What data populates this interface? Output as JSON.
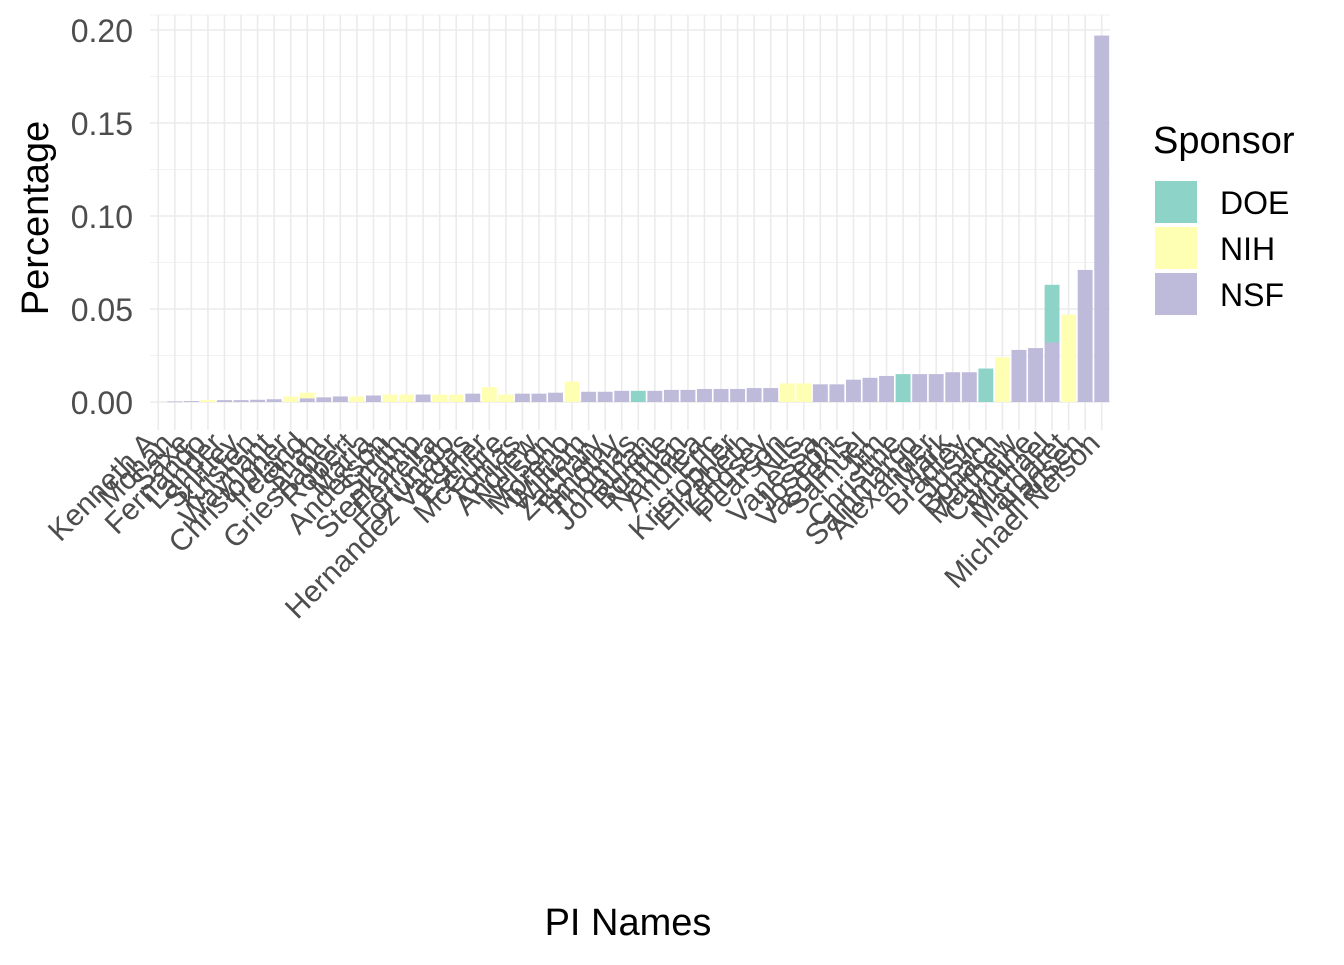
{
  "chart_data": {
    "type": "bar",
    "xlabel": "PI Names",
    "ylabel": "Percentage",
    "ylim": [
      0,
      0.2
    ],
    "yticks": [
      0.0,
      0.05,
      0.1,
      0.15,
      0.2
    ],
    "ytick_labels": [
      "0.00",
      "0.05",
      "0.10",
      "0.15",
      "0.20"
    ],
    "grid": true,
    "legend": {
      "title": "Sponsor",
      "placement": "right",
      "entries": [
        {
          "name": "DOE",
          "color": "#8DD3C7"
        },
        {
          "name": "NIH",
          "color": "#FFFFB3"
        },
        {
          "name": "NSF",
          "color": "#BEBADA"
        }
      ]
    },
    "colors": {
      "DOE": "#8DD3C7",
      "NIH": "#FFFFB3",
      "NSF": "#BEBADA"
    },
    "categories": [
      "Kenneth A",
      "Mohan",
      "Saxe",
      "Fernando",
      "Lander",
      "Shirley",
      "Kristen",
      "Waynant",
      "Christopher",
      "Ireland",
      "Shah",
      "Grieshaber",
      "Robert",
      "Maria",
      "Anderson",
      "Smith",
      "Stenkamp",
      "Ferreira",
      "Fortunato",
      "Hernandez Vargas",
      "Esther",
      "McGuire",
      "Tomas",
      "Andrew",
      "Nelson",
      "Moreno",
      "William",
      "Zachary",
      "Timothy",
      "Thomas",
      "Jonathan",
      "Bonnie",
      "Nathan",
      "Andrea",
      "Eric",
      "Kristopher",
      "Elizabeth",
      "Lindsey",
      "Pearson",
      "Nils",
      "Vanessa",
      "Joseph",
      "Vasdekis",
      "Samuel",
      "Jim",
      "Christine",
      "Sammarco",
      "Alexander",
      "Mark",
      "Bradley",
      "Justin",
      "Bohach",
      "Matthew",
      "Caroline",
      "Michael",
      "Margaret",
      "Hansen",
      "Michael Nelson"
    ],
    "values_by_sponsor": {
      "DOE": [
        0,
        0,
        0,
        0,
        0,
        0,
        0,
        0,
        0,
        0,
        0,
        0,
        0,
        0,
        0,
        0,
        0,
        0,
        0,
        0,
        0,
        0,
        0,
        0,
        0,
        0,
        0,
        0,
        0,
        0.006,
        0,
        0,
        0,
        0,
        0,
        0,
        0,
        0,
        0,
        0,
        0,
        0,
        0,
        0,
        0,
        0.015,
        0,
        0,
        0,
        0,
        0.018,
        0,
        0,
        0,
        0.031,
        0,
        0,
        0
      ],
      "NIH": [
        0,
        0,
        0,
        0.001,
        0,
        0,
        0,
        0,
        0.003,
        0.003,
        0,
        0,
        0.003,
        0,
        0.004,
        0.004,
        0,
        0.004,
        0.004,
        0,
        0.008,
        0.004,
        0,
        0,
        0,
        0.011,
        0,
        0,
        0,
        0,
        0,
        0,
        0,
        0,
        0,
        0,
        0,
        0,
        0.01,
        0.01,
        0,
        0,
        0,
        0,
        0,
        0,
        0,
        0,
        0,
        0,
        0,
        0.024,
        0,
        0,
        0,
        0.047,
        0,
        0
      ],
      "NSF": [
        0,
        0.0003,
        0.0005,
        0,
        0.001,
        0.001,
        0.0012,
        0.0015,
        0,
        0.002,
        0.0025,
        0.003,
        0,
        0.0035,
        0,
        0,
        0.004,
        0,
        0,
        0.0045,
        0,
        0,
        0.0045,
        0.0045,
        0.005,
        0,
        0.0055,
        0.0055,
        0.006,
        0,
        0.006,
        0.0065,
        0.0065,
        0.007,
        0.007,
        0.007,
        0.0075,
        0.0075,
        0,
        0,
        0.0095,
        0.0095,
        0.012,
        0.013,
        0.014,
        0,
        0.015,
        0.015,
        0.016,
        0.016,
        0,
        0,
        0.028,
        0.029,
        0.032,
        0,
        0.071,
        0.187
      ]
    },
    "extra_bars": {
      "index_of_last": 0.197
    }
  }
}
